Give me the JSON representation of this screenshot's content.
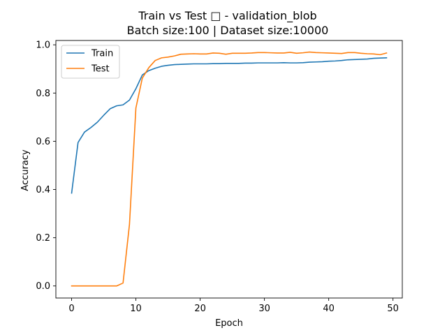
{
  "chart_data": {
    "type": "line",
    "title": "Train vs Test □ - validation_blob",
    "subtitle": "Batch size:100 | Dataset size:10000",
    "xlabel": "Epoch",
    "ylabel": "Accuracy",
    "xlim": [
      -2.45,
      51.45
    ],
    "ylim": [
      -0.05,
      1.018
    ],
    "xticks": [
      0,
      10,
      20,
      30,
      40,
      50
    ],
    "yticks": [
      0.0,
      0.2,
      0.4,
      0.6,
      0.8,
      1.0
    ],
    "xtick_labels": [
      "0",
      "10",
      "20",
      "30",
      "40",
      "50"
    ],
    "ytick_labels": [
      "0.0",
      "0.2",
      "0.4",
      "0.6",
      "0.8",
      "1.0"
    ],
    "grid": false,
    "legend_position": "top-left",
    "x": [
      0,
      1,
      2,
      3,
      4,
      5,
      6,
      7,
      8,
      9,
      10,
      11,
      12,
      13,
      14,
      15,
      16,
      17,
      18,
      19,
      20,
      21,
      22,
      23,
      24,
      25,
      26,
      27,
      28,
      29,
      30,
      31,
      32,
      33,
      34,
      35,
      36,
      37,
      38,
      39,
      40,
      41,
      42,
      43,
      44,
      45,
      46,
      47,
      48,
      49
    ],
    "series": [
      {
        "name": "Train",
        "color": "#1f77b4",
        "values": [
          0.385,
          0.595,
          0.638,
          0.657,
          0.679,
          0.708,
          0.735,
          0.747,
          0.751,
          0.771,
          0.818,
          0.875,
          0.893,
          0.903,
          0.911,
          0.915,
          0.918,
          0.919,
          0.92,
          0.921,
          0.921,
          0.921,
          0.922,
          0.922,
          0.923,
          0.923,
          0.923,
          0.924,
          0.924,
          0.925,
          0.925,
          0.925,
          0.925,
          0.926,
          0.925,
          0.925,
          0.926,
          0.928,
          0.929,
          0.93,
          0.932,
          0.933,
          0.935,
          0.938,
          0.939,
          0.94,
          0.941,
          0.944,
          0.945,
          0.946
        ]
      },
      {
        "name": "Test",
        "color": "#ff7f0e",
        "values": [
          0.0,
          0.0,
          0.0,
          0.0,
          0.0,
          0.0,
          0.0,
          0.0,
          0.012,
          0.255,
          0.738,
          0.862,
          0.905,
          0.935,
          0.946,
          0.949,
          0.954,
          0.961,
          0.962,
          0.963,
          0.962,
          0.962,
          0.966,
          0.965,
          0.961,
          0.965,
          0.965,
          0.965,
          0.966,
          0.968,
          0.968,
          0.967,
          0.966,
          0.966,
          0.969,
          0.965,
          0.967,
          0.97,
          0.968,
          0.967,
          0.966,
          0.965,
          0.964,
          0.968,
          0.968,
          0.965,
          0.963,
          0.962,
          0.959,
          0.966
        ]
      }
    ]
  }
}
